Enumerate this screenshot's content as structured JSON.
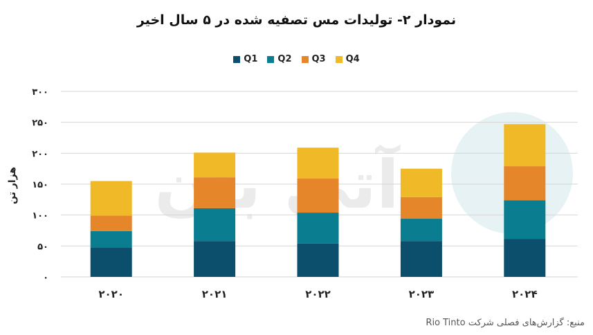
{
  "title": "نمودار ۲- تولیدات مس تصفیه شده در ۵ سال اخیر",
  "source": "منبع: گزارش‌های فصلی شرکت Rio Tinto",
  "watermark": "آتی بان",
  "colors": {
    "Q1": "#0b4f6c",
    "Q2": "#0a7d90",
    "Q3": "#e6862a",
    "Q4": "#efb928",
    "grid": "#d6d6d6",
    "axis_text": "#222222"
  },
  "chart_data": {
    "type": "bar",
    "stacked": true,
    "categories": [
      "۲۰۲۰",
      "۲۰۲۱",
      "۲۰۲۲",
      "۲۰۲۳",
      "۲۰۲۴"
    ],
    "series": [
      {
        "name": "Q1",
        "values": [
          47,
          58,
          54,
          58,
          61
        ]
      },
      {
        "name": "Q2",
        "values": [
          27,
          53,
          50,
          36,
          63
        ]
      },
      {
        "name": "Q3",
        "values": [
          25,
          50,
          55,
          35,
          55
        ]
      },
      {
        "name": "Q4",
        "values": [
          56,
          40,
          50,
          46,
          68
        ]
      }
    ],
    "ylabel": "هزار تن",
    "xlabel": "",
    "ylim": [
      0,
      300
    ],
    "yticks": [
      {
        "value": 0,
        "label": "۰"
      },
      {
        "value": 50,
        "label": "۵۰"
      },
      {
        "value": 100,
        "label": "۱۰۰"
      },
      {
        "value": 150,
        "label": "۱۵۰"
      },
      {
        "value": 200,
        "label": "۲۰۰"
      },
      {
        "value": 250,
        "label": "۲۵۰"
      },
      {
        "value": 300,
        "label": "۳۰۰"
      }
    ],
    "grid": true,
    "legend_position": "top"
  }
}
